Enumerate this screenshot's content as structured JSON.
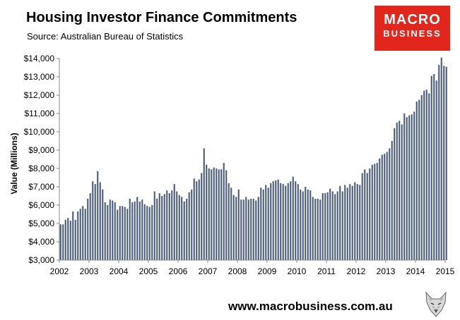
{
  "title": "Housing Investor Finance Commitments",
  "subtitle": "Source: Australian Bureau of Statistics",
  "logo": {
    "line1": "MACRO",
    "line2": "BUSINESS"
  },
  "footer": {
    "url": "www.macrobusiness.com.au"
  },
  "colors": {
    "bar": "#4a5b7c",
    "axis": "#888888",
    "brand": "#e1261c"
  },
  "icons": {
    "mascot": "wolf-icon"
  },
  "chart_data": {
    "type": "bar",
    "title": "Housing Investor Finance Commitments",
    "xlabel": "",
    "ylabel": "Value (Millions)",
    "ylim": [
      3000,
      14000
    ],
    "yticks": [
      3000,
      4000,
      5000,
      6000,
      7000,
      8000,
      9000,
      10000,
      11000,
      12000,
      13000,
      14000
    ],
    "ytick_labels": [
      "$3,000",
      "$4,000",
      "$5,000",
      "$6,000",
      "$7,000",
      "$8,000",
      "$9,000",
      "$10,000",
      "$11,000",
      "$12,000",
      "$13,000",
      "$14,000"
    ],
    "xlim": [
      2002,
      2015
    ],
    "xticks": [
      "2002",
      "2003",
      "2004",
      "2005",
      "2006",
      "2007",
      "2008",
      "2009",
      "2010",
      "2011",
      "2012",
      "2013",
      "2014",
      "2015"
    ],
    "grid": false,
    "legend": "none",
    "series": [
      {
        "start": 2002.0,
        "step": 0.08333,
        "values": [
          4950,
          4950,
          5200,
          5300,
          5150,
          5650,
          5200,
          5650,
          5800,
          5950,
          5800,
          6350,
          6650,
          7300,
          7150,
          7850,
          7250,
          6850,
          6150,
          6000,
          6300,
          6250,
          6150,
          5750,
          5950,
          5950,
          5900,
          5800,
          6350,
          6150,
          6200,
          6450,
          6200,
          6300,
          6050,
          5950,
          5900,
          6000,
          6750,
          6350,
          6650,
          6500,
          6600,
          6800,
          6650,
          6800,
          7150,
          6750,
          6550,
          6450,
          6200,
          6350,
          6700,
          6850,
          7450,
          7300,
          7400,
          7750,
          9100,
          8200,
          8000,
          7950,
          8050,
          8000,
          7950,
          7950,
          8300,
          7900,
          7200,
          6950,
          6550,
          6450,
          6850,
          6300,
          6300,
          6450,
          6300,
          6350,
          6350,
          6250,
          6450,
          6950,
          6850,
          7100,
          6950,
          7200,
          7300,
          7350,
          7400,
          7200,
          7150,
          7050,
          7200,
          7300,
          7550,
          7300,
          7150,
          6850,
          6750,
          7000,
          6850,
          6800,
          6450,
          6350,
          6350,
          6300,
          6650,
          6650,
          6700,
          6900,
          6750,
          6600,
          6750,
          7050,
          6750,
          7100,
          6950,
          7150,
          7050,
          7250,
          7150,
          7100,
          7750,
          7950,
          7750,
          8000,
          8200,
          8250,
          8300,
          8550,
          8750,
          8800,
          8900,
          9100,
          9500,
          10200,
          10500,
          10600,
          10400,
          11000,
          10800,
          10900,
          10950,
          11100,
          11650,
          11750,
          12000,
          12250,
          12300,
          12100,
          13050,
          13150,
          12800,
          13650,
          14050,
          13600,
          13550
        ]
      }
    ]
  }
}
